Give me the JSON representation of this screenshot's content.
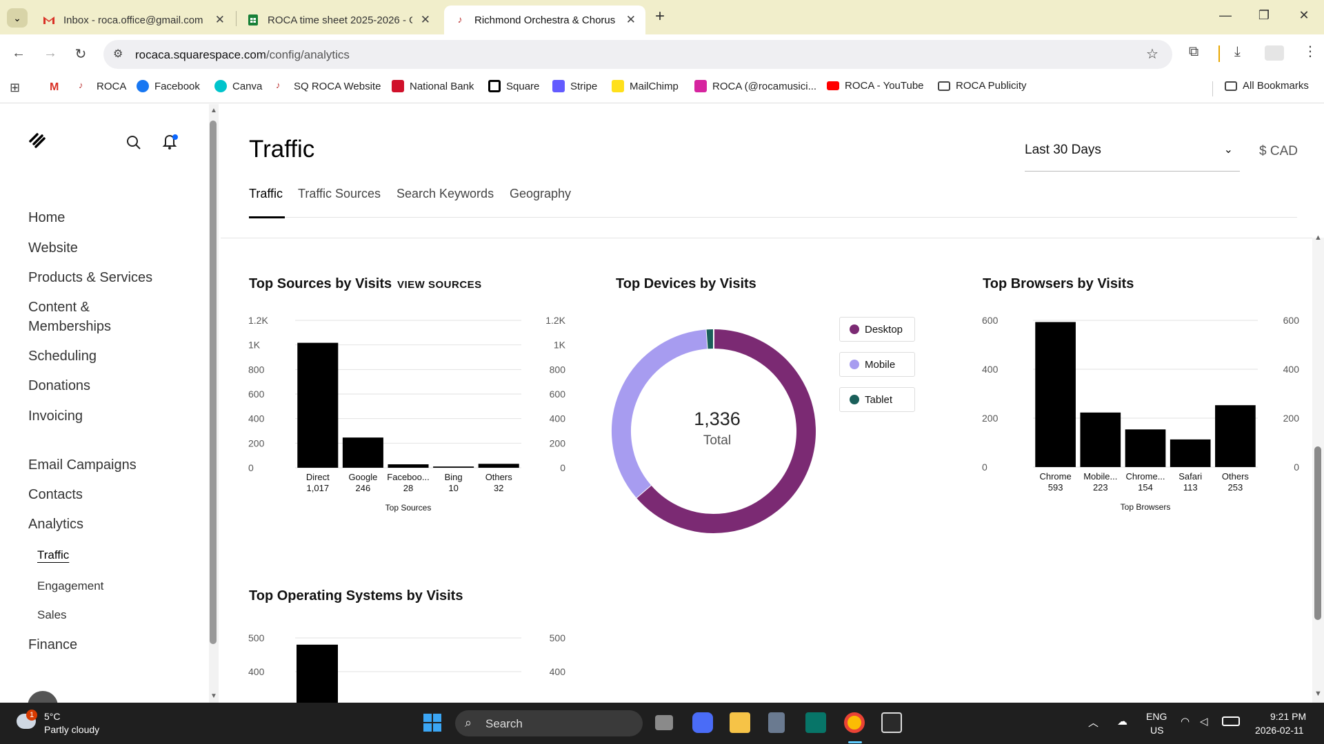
{
  "browser": {
    "tabs": [
      {
        "title": "Inbox - roca.office@gmail.com",
        "icon": "gmail-icon"
      },
      {
        "title": "ROCA time sheet 2025-2026 - G",
        "icon": "sheets-icon"
      },
      {
        "title": "Richmond Orchestra & Chorus",
        "icon": "roca-icon"
      }
    ],
    "new_tab": "+",
    "url_host": "rocaca.squarespace.com",
    "url_path": "/config/analytics",
    "bookmarks": [
      "ROCA",
      "Facebook",
      "Canva",
      "SQ ROCA Website",
      "National Bank",
      "Square",
      "Stripe",
      "MailChimp",
      "ROCA (@rocamusici...",
      "ROCA - YouTube",
      "ROCA Publicity"
    ],
    "all_bookmarks": "All Bookmarks"
  },
  "sidebar": {
    "items": [
      "Home",
      "Website",
      "Products & Services",
      "Content &",
      "Memberships",
      "Scheduling",
      "Donations",
      "Invoicing",
      "Email Campaigns",
      "Contacts",
      "Analytics",
      "Finance"
    ],
    "sub_items": [
      "Traffic",
      "Engagement",
      "Sales"
    ]
  },
  "page": {
    "title": "Traffic",
    "tabs": [
      "Traffic",
      "Traffic Sources",
      "Search Keywords",
      "Geography"
    ],
    "range": "Last 30 Days",
    "currency": "$ CAD",
    "view_sources": "VIEW SOURCES",
    "sections": [
      "Top Sources by Visits",
      "Top Devices by Visits",
      "Top Browsers by Visits",
      "Top Operating Systems by Visits"
    ],
    "donut_total": "1,336",
    "donut_label": "Total"
  },
  "chart_data": [
    {
      "type": "bar",
      "title": "Top Sources by Visits",
      "xlabel": "Top Sources",
      "categories": [
        "Direct",
        "Google",
        "Faceboo...",
        "Bing",
        "Others"
      ],
      "values": [
        1017,
        246,
        28,
        10,
        32
      ],
      "value_labels": [
        "1,017",
        "246",
        "28",
        "10",
        "32"
      ],
      "ylim": [
        0,
        1200
      ],
      "yticks": [
        "0",
        "200",
        "400",
        "600",
        "800",
        "1K",
        "1.2K"
      ],
      "color": "#000000"
    },
    {
      "type": "pie",
      "title": "Top Devices by Visits",
      "categories": [
        "Desktop",
        "Mobile",
        "Tablet"
      ],
      "values": [
        851,
        470,
        15
      ],
      "colors": [
        "#7b2a73",
        "#a79cf0",
        "#1a5f5a"
      ]
    },
    {
      "type": "bar",
      "title": "Top Browsers by Visits",
      "xlabel": "Top Browsers",
      "categories": [
        "Chrome",
        "Mobile...",
        "Chrome...",
        "Safari",
        "Others"
      ],
      "values": [
        593,
        223,
        154,
        113,
        253
      ],
      "value_labels": [
        "593",
        "223",
        "154",
        "113",
        "253"
      ],
      "ylim": [
        0,
        600
      ],
      "yticks": [
        "0",
        "200",
        "400",
        "600"
      ],
      "color": "#000000"
    },
    {
      "type": "bar",
      "title": "Top Operating Systems by Visits",
      "categories": [
        ""
      ],
      "values": [
        480
      ],
      "yticks": [
        "400",
        "500"
      ],
      "color": "#000000"
    }
  ],
  "taskbar": {
    "weather_temp": "5°C",
    "weather_desc": "Partly cloudy",
    "weather_badge": "1",
    "search": "Search",
    "lang1": "ENG",
    "lang2": "US",
    "time": "9:21 PM",
    "date": "2026-02-11"
  }
}
